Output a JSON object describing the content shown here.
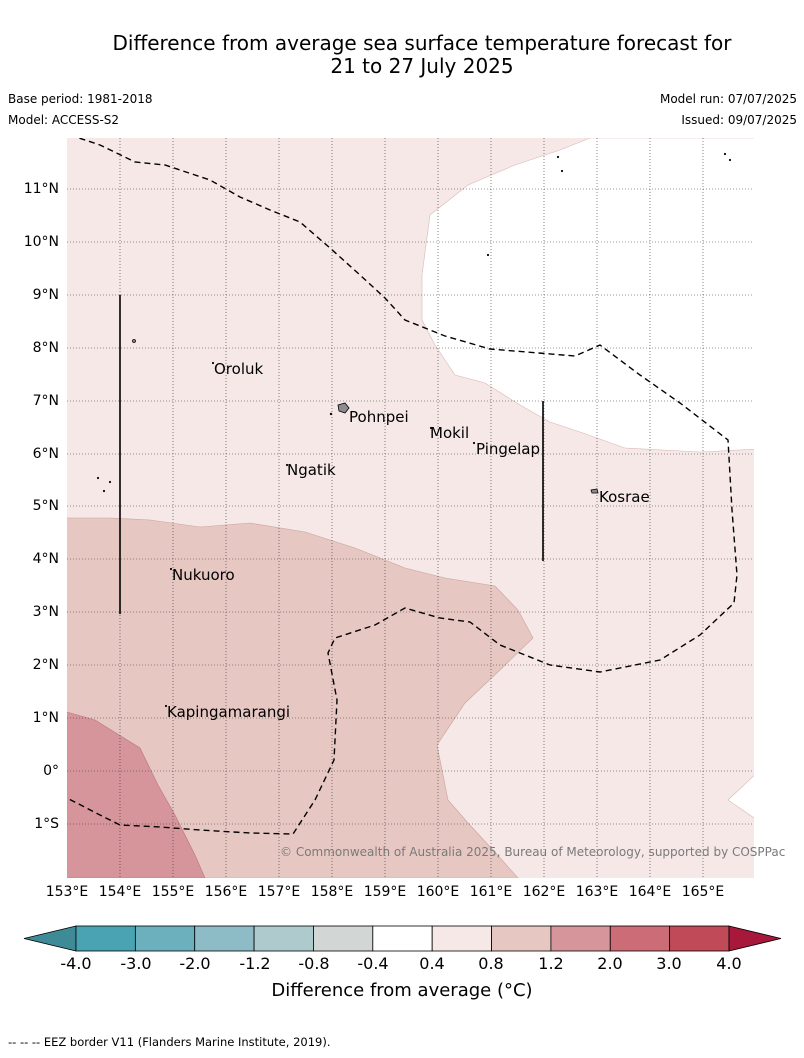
{
  "title_line1": "Difference from average sea surface temperature forecast for",
  "title_line2": "21 to 27 July 2025",
  "base_period": "Base period: 1981-2018",
  "model": "Model: ACCESS-S2",
  "model_run": "Model run: 07/07/2025",
  "issued": "Issued: 09/07/2025",
  "lon_labels": [
    "153°E",
    "154°E",
    "155°E",
    "156°E",
    "157°E",
    "158°E",
    "159°E",
    "160°E",
    "161°E",
    "162°E",
    "163°E",
    "164°E",
    "165°E"
  ],
  "lat_labels": [
    "11°N",
    "10°N",
    "9°N",
    "8°N",
    "7°N",
    "6°N",
    "5°N",
    "4°N",
    "3°N",
    "2°N",
    "1°N",
    "0°",
    "1°S"
  ],
  "places": [
    "Oroluk",
    "Pohnpei",
    "Mokil",
    "Pingelap",
    "Ngatik",
    "Kosrae",
    "Nukuoro",
    "Kapingamarangi"
  ],
  "copyright": "© Commonwealth of Australia 2025, Bureau of Meteorology, supported by COSPPac",
  "colorbar": {
    "ticks": [
      "-4.0",
      "-3.0",
      "-2.0",
      "-1.2",
      "-0.8",
      "-0.4",
      "0.4",
      "0.8",
      "1.2",
      "2.0",
      "3.0",
      "4.0"
    ],
    "colors": [
      "#3f8a97",
      "#4aa3b2",
      "#6cb0bd",
      "#8ebcc6",
      "#aecacd",
      "#d2d6d5",
      "#ffffff",
      "#f5e8e7",
      "#e7c7c2",
      "#d6949b",
      "#cc6c76",
      "#c04a58",
      "#a8183a"
    ],
    "title": "Difference from average (°C)"
  },
  "footer": "-- -- -- EEZ border V11 (Flanders Marine Institute, 2019).",
  "legend_colors": {
    "plot_bg": "#f5e8e7",
    "band_0_4": "#ffffff",
    "band_0_8": "#e7c7c2",
    "band_1_2": "#d6949b"
  }
}
